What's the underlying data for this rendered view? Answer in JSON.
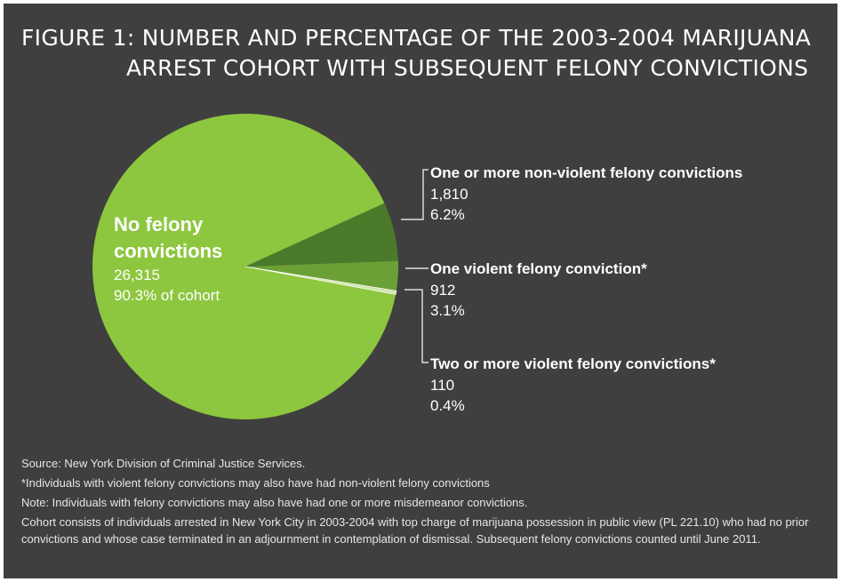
{
  "title_line1": "FIGURE 1: NUMBER AND PERCENTAGE OF THE 2003-2004 MARIJUANA",
  "title_line2": "ARREST COHORT WITH SUBSEQUENT FELONY CONVICTIONS",
  "colors": {
    "background": "#3f3f3f",
    "no_felony": "#8dc63f",
    "non_violent": "#4a7a2a",
    "one_violent": "#6aa035",
    "two_violent": "#cfe3a8",
    "leader": "#ffffff"
  },
  "chart_data": {
    "type": "pie",
    "slices": [
      {
        "name_line1": "No felony",
        "name_line2": "convictions",
        "count": "26,315",
        "value": 26315,
        "percent_label": "90.3% of cohort",
        "percent": 90.3
      },
      {
        "name": "One or more non-violent felony convictions",
        "count": "1,810",
        "value": 1810,
        "percent_label": "6.2%",
        "percent": 6.2
      },
      {
        "name": "One violent felony conviction*",
        "count": "912",
        "value": 912,
        "percent_label": "3.1%",
        "percent": 3.1
      },
      {
        "name": "Two or more violent felony convictions*",
        "count": "110",
        "value": 110,
        "percent_label": "0.4%",
        "percent": 0.4
      }
    ]
  },
  "notes": [
    "Source: New York Division of Criminal Justice Services.",
    "*Individuals with violent felony convictions may also have had non-violent felony convictions",
    "Note: Individuals with felony convictions may also have had one or more misdemeanor convictions.",
    "Cohort consists of individuals arrested in New York City in 2003-2004 with top charge of marijuana possession in public view (PL 221.10) who had no prior convictions and whose case terminated in an adjournment in contemplation of dismissal. Subsequent felony convictions counted until June 2011."
  ]
}
